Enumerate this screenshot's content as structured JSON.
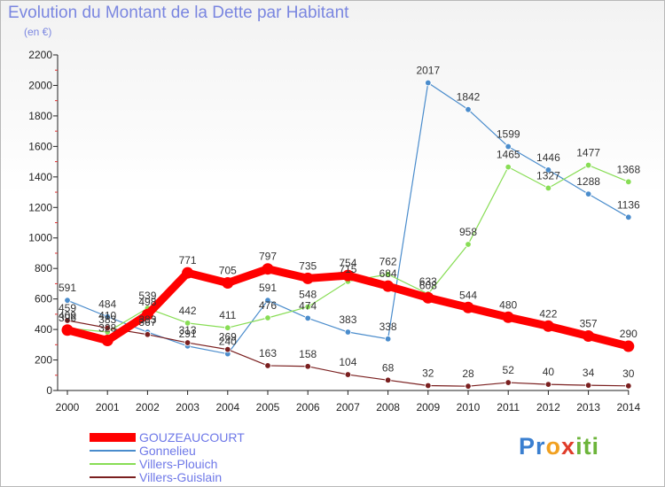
{
  "title": "Evolution du Montant de la Dette par Habitant",
  "unit": "(en €)",
  "logo": "Proxiti",
  "chart_data": {
    "type": "line",
    "x": [
      "2000",
      "2001",
      "2002",
      "2003",
      "2004",
      "2005",
      "2006",
      "2007",
      "2008",
      "2009",
      "2010",
      "2011",
      "2012",
      "2013",
      "2014"
    ],
    "ylim": [
      0,
      2200
    ],
    "yticks": [
      0,
      200,
      400,
      600,
      800,
      1000,
      1200,
      1400,
      1600,
      1800,
      2000,
      2200
    ],
    "grid": false,
    "legend_position": "bottom-left",
    "series": [
      {
        "name": "GOUZEAUCOURT",
        "color": "#ff0000",
        "emphasis": true,
        "values": [
          396,
          328,
          498,
          771,
          705,
          797,
          735,
          754,
          684,
          608,
          544,
          480,
          422,
          357,
          290
        ]
      },
      {
        "name": "Gonnelieu",
        "color": "#4a8ccc",
        "values": [
          591,
          484,
          383,
          291,
          240,
          591,
          474,
          383,
          338,
          2017,
          1842,
          1599,
          1446,
          1288,
          1136
        ]
      },
      {
        "name": "Villers-Plouich",
        "color": "#88dd55",
        "values": [
          409,
          383,
          539,
          442,
          411,
          476,
          548,
          715,
          762,
          633,
          958,
          1465,
          1327,
          1477,
          1368
        ]
      },
      {
        "name": "Villers-Guislain",
        "color": "#7a1f1f",
        "values": [
          459,
          410,
          367,
          313,
          269,
          163,
          158,
          104,
          68,
          32,
          28,
          52,
          40,
          34,
          30
        ]
      }
    ]
  }
}
